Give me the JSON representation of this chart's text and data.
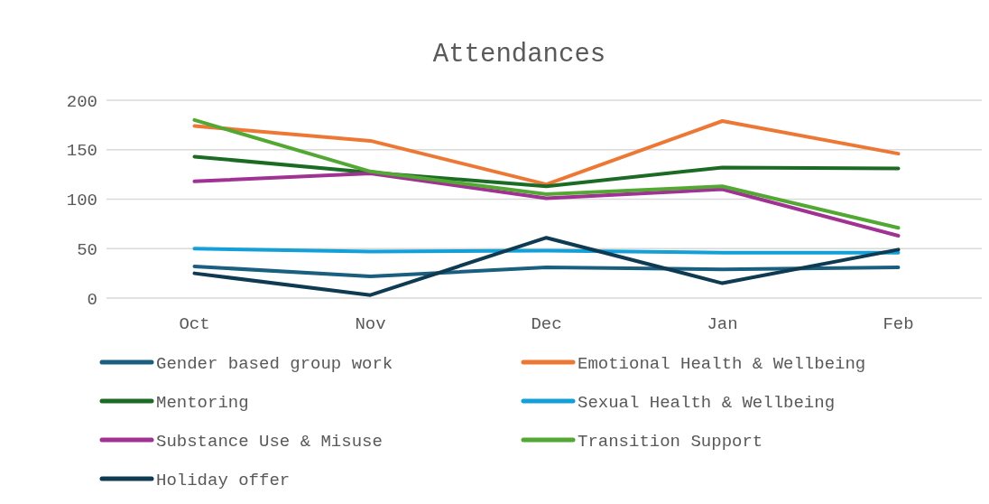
{
  "chart_data": {
    "type": "line",
    "title": "Attendances",
    "categories": [
      "Oct",
      "Nov",
      "Dec",
      "Jan",
      "Feb"
    ],
    "ylim": [
      0,
      200
    ],
    "yticks": [
      0,
      50,
      100,
      150,
      200
    ],
    "grid": "y",
    "legend": "bottom",
    "series": [
      {
        "name": "Gender based group work",
        "color": "#1a5f7f",
        "values": [
          32,
          22,
          31,
          29,
          31
        ]
      },
      {
        "name": "Emotional Health & Wellbeing",
        "color": "#ed7734",
        "values": [
          174,
          159,
          115,
          179,
          146
        ]
      },
      {
        "name": "Mentoring",
        "color": "#1c6b25",
        "values": [
          143,
          127,
          113,
          132,
          131
        ]
      },
      {
        "name": "Sexual Health & Wellbeing",
        "color": "#13a0d8",
        "values": [
          50,
          47,
          48,
          46,
          46
        ]
      },
      {
        "name": "Substance Use & Misuse",
        "color": "#a03293",
        "values": [
          118,
          126,
          101,
          110,
          63
        ]
      },
      {
        "name": "Transition Support",
        "color": "#52a832",
        "values": [
          180,
          128,
          105,
          113,
          71
        ]
      },
      {
        "name": "Holiday offer",
        "color": "#0e3a52",
        "values": [
          25,
          3,
          61,
          15,
          49
        ]
      }
    ]
  }
}
